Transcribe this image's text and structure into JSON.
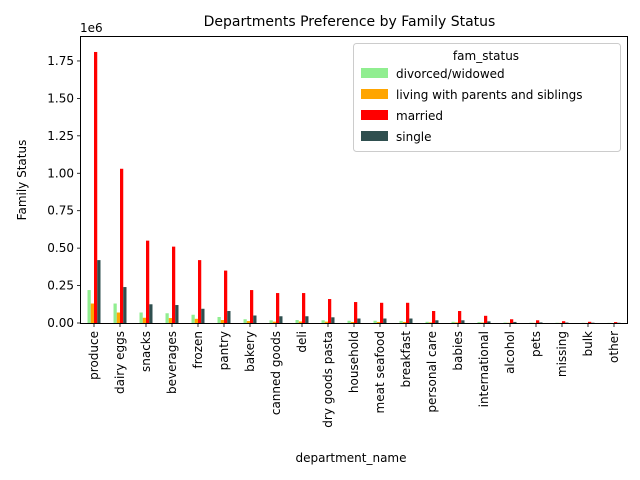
{
  "chart_data": {
    "type": "bar",
    "title": "Departments Preference by Family Status",
    "xlabel": "department_name",
    "ylabel": "Family Status",
    "y_offset_text": "1e6",
    "y_ticks": [
      "0.00",
      "0.25",
      "0.50",
      "0.75",
      "1.00",
      "1.25",
      "1.50",
      "1.75"
    ],
    "y_tick_values": [
      0,
      250000,
      500000,
      750000,
      1000000,
      1250000,
      1500000,
      1750000
    ],
    "ylim": [
      0,
      1910000
    ],
    "legend_title": "fam_status",
    "legend_position": "upper right",
    "grid": false,
    "categories": [
      "produce",
      "dairy eggs",
      "snacks",
      "beverages",
      "frozen",
      "pantry",
      "bakery",
      "canned goods",
      "deli",
      "dry goods pasta",
      "household",
      "meat seafood",
      "breakfast",
      "personal care",
      "babies",
      "international",
      "alcohol",
      "pets",
      "missing",
      "bulk",
      "other"
    ],
    "series": [
      {
        "name": "divorced/widowed",
        "color": "#90ee90",
        "values": [
          220000,
          130000,
          70000,
          65000,
          55000,
          40000,
          25000,
          18000,
          20000,
          18000,
          15000,
          15000,
          14000,
          8000,
          8000,
          6000,
          3000,
          2000,
          1500,
          1000,
          800
        ]
      },
      {
        "name": "living with parents and siblings",
        "color": "#ffa500",
        "values": [
          130000,
          70000,
          35000,
          33000,
          28000,
          20000,
          13000,
          9000,
          10000,
          9000,
          7000,
          7000,
          7000,
          4000,
          4000,
          3000,
          1500,
          1000,
          800,
          500,
          400
        ]
      },
      {
        "name": "married",
        "color": "#ff0000",
        "values": [
          1810000,
          1030000,
          550000,
          510000,
          420000,
          350000,
          220000,
          200000,
          200000,
          160000,
          140000,
          135000,
          135000,
          80000,
          80000,
          48000,
          25000,
          18000,
          12000,
          8000,
          6000
        ]
      },
      {
        "name": "single",
        "color": "#2f4f4f",
        "values": [
          420000,
          240000,
          125000,
          120000,
          95000,
          80000,
          50000,
          45000,
          45000,
          38000,
          30000,
          30000,
          30000,
          18000,
          18000,
          11000,
          7000,
          4000,
          3000,
          2000,
          1500
        ]
      }
    ]
  }
}
